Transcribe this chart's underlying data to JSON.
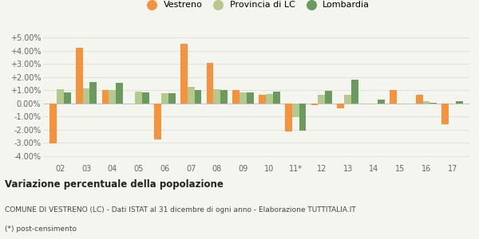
{
  "years": [
    "02",
    "03",
    "04",
    "05",
    "06",
    "07",
    "08",
    "09",
    "10",
    "11*",
    "12",
    "13",
    "14",
    "15",
    "16",
    "17"
  ],
  "vestreno": [
    -3.05,
    4.2,
    1.0,
    0.0,
    -2.75,
    4.55,
    3.05,
    1.0,
    0.65,
    -2.15,
    -0.15,
    -0.4,
    0.0,
    1.0,
    0.65,
    -1.6
  ],
  "provincia": [
    1.1,
    1.15,
    1.0,
    0.9,
    0.75,
    1.25,
    1.1,
    0.85,
    0.7,
    -1.05,
    0.65,
    0.65,
    -0.05,
    -0.1,
    0.15,
    0.0
  ],
  "lombardia": [
    0.85,
    1.6,
    1.55,
    0.85,
    0.75,
    1.0,
    1.0,
    0.85,
    0.9,
    -2.1,
    0.95,
    1.8,
    0.3,
    0.0,
    0.05,
    0.15
  ],
  "color_vestreno": "#f5923e",
  "color_provincia": "#b5c98e",
  "color_lombardia": "#6b9a5e",
  "title": "Variazione percentuale della popolazione",
  "subtitle": "COMUNE DI VESTRENO (LC) - Dati ISTAT al 31 dicembre di ogni anno - Elaborazione TUTTITALIA.IT",
  "footnote": "(*) post-censimento",
  "ylim": [
    -4.5,
    5.5
  ],
  "yticks": [
    -4.0,
    -3.0,
    -2.0,
    -1.0,
    0.0,
    1.0,
    2.0,
    3.0,
    4.0,
    5.0
  ],
  "ytick_labels": [
    "-4.00%",
    "-3.00%",
    "-2.00%",
    "-1.00%",
    "0.00%",
    "+1.00%",
    "+2.00%",
    "+3.00%",
    "+4.00%",
    "+5.00%"
  ],
  "bg_color": "#f5f5f0",
  "legend_labels": [
    "Vestreno",
    "Provincia di LC",
    "Lombardia"
  ]
}
